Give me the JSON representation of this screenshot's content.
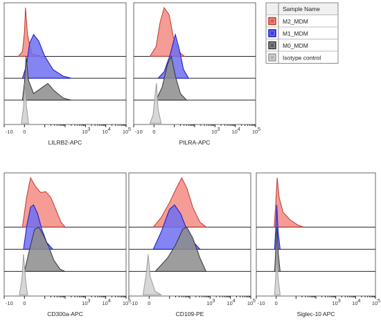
{
  "legend": {
    "title": "Sample Name",
    "entries": [
      {
        "label": "M2_MDM",
        "stroke": "#c0392b",
        "fill": "#f28b82",
        "key": "m2"
      },
      {
        "label": "M1_MDM",
        "stroke": "#1414c8",
        "fill": "#6f6ff0",
        "key": "m1"
      },
      {
        "label": "M0_MDM",
        "stroke": "#333333",
        "fill": "#8c8c8c",
        "key": "m0"
      },
      {
        "label": "Isotype control",
        "stroke": "#9a9a9a",
        "fill": "#d0d0d0",
        "key": "iso"
      }
    ]
  },
  "chart_data": [
    {
      "type": "histogram",
      "xlabel": "LILRB2-APC",
      "tick_labels": [
        "-10",
        "0",
        "10",
        "3",
        "10",
        "4",
        "10",
        "5"
      ],
      "series": {
        "m2": [
          [
            -0.3,
            0
          ],
          [
            -0.1,
            0.1
          ],
          [
            0,
            0.5
          ],
          [
            0.05,
            1.0
          ],
          [
            0.15,
            0.45
          ],
          [
            0.35,
            0.05
          ],
          [
            0.8,
            0
          ]
        ],
        "m1": [
          [
            -0.1,
            0
          ],
          [
            0.1,
            0.3
          ],
          [
            0.25,
            0.8
          ],
          [
            0.45,
            1.0
          ],
          [
            0.7,
            0.85
          ],
          [
            1.0,
            0.5
          ],
          [
            1.4,
            0.2
          ],
          [
            1.9,
            0.05
          ],
          [
            2.3,
            0
          ]
        ],
        "m0": [
          [
            -0.1,
            0
          ],
          [
            0,
            0.4
          ],
          [
            0.08,
            1.0
          ],
          [
            0.2,
            0.45
          ],
          [
            0.45,
            0.15
          ],
          [
            0.9,
            0.3
          ],
          [
            1.15,
            0.38
          ],
          [
            1.45,
            0.22
          ],
          [
            1.9,
            0.05
          ],
          [
            2.3,
            0
          ]
        ],
        "iso": [
          [
            -0.15,
            0
          ],
          [
            -0.05,
            0.4
          ],
          [
            0.02,
            1.0
          ],
          [
            0.1,
            0.4
          ],
          [
            0.2,
            0
          ]
        ]
      }
    },
    {
      "type": "histogram",
      "xlabel": "PILRA-APC",
      "tick_labels": [
        "-10",
        "0",
        "10",
        "3",
        "10",
        "4",
        "10",
        "5"
      ],
      "series": {
        "m2": [
          [
            -0.2,
            0
          ],
          [
            0.1,
            0.2
          ],
          [
            0.3,
            0.7
          ],
          [
            0.5,
            1.0
          ],
          [
            0.75,
            0.85
          ],
          [
            0.95,
            0.4
          ],
          [
            1.2,
            0.1
          ],
          [
            1.5,
            0
          ]
        ],
        "m1": [
          [
            0.2,
            0
          ],
          [
            0.5,
            0.15
          ],
          [
            0.8,
            0.55
          ],
          [
            1.05,
            1.0
          ],
          [
            1.25,
            0.65
          ],
          [
            1.45,
            0.2
          ],
          [
            1.7,
            0
          ]
        ],
        "m0": [
          [
            0.1,
            0
          ],
          [
            0.4,
            0.3
          ],
          [
            0.65,
            0.8
          ],
          [
            0.85,
            1.0
          ],
          [
            1.05,
            0.55
          ],
          [
            1.3,
            0.15
          ],
          [
            1.6,
            0
          ]
        ],
        "iso": [
          [
            -0.2,
            0
          ],
          [
            -0.05,
            0.2
          ],
          [
            0.05,
            0.7
          ],
          [
            0.12,
            1.0
          ],
          [
            0.2,
            0.35
          ],
          [
            0.35,
            0
          ]
        ]
      }
    },
    {
      "type": "histogram",
      "xlabel": "CD300a-APC",
      "tick_labels": [
        "-10",
        "0",
        "10",
        "3",
        "10",
        "4",
        "10",
        "5"
      ],
      "series": {
        "m2": [
          [
            -0.1,
            0
          ],
          [
            0.1,
            0.6
          ],
          [
            0.3,
            1.0
          ],
          [
            0.55,
            0.82
          ],
          [
            0.8,
            0.7
          ],
          [
            1.05,
            0.72
          ],
          [
            1.3,
            0.6
          ],
          [
            1.55,
            0.35
          ],
          [
            1.8,
            0.1
          ],
          [
            2.0,
            0
          ]
        ],
        "m1": [
          [
            -0.05,
            0
          ],
          [
            0.1,
            0.5
          ],
          [
            0.3,
            0.95
          ],
          [
            0.45,
            1.0
          ],
          [
            0.65,
            0.8
          ],
          [
            0.85,
            0.45
          ],
          [
            1.1,
            0.15
          ],
          [
            1.4,
            0
          ]
        ],
        "m0": [
          [
            0,
            0
          ],
          [
            0.25,
            0.5
          ],
          [
            0.5,
            0.95
          ],
          [
            0.7,
            1.0
          ],
          [
            0.95,
            0.8
          ],
          [
            1.2,
            0.55
          ],
          [
            1.45,
            0.25
          ],
          [
            1.75,
            0.05
          ],
          [
            2.0,
            0
          ]
        ],
        "iso": [
          [
            -0.25,
            0
          ],
          [
            -0.12,
            0.4
          ],
          [
            -0.05,
            1.0
          ],
          [
            0.05,
            0.4
          ],
          [
            0.15,
            0
          ]
        ]
      }
    },
    {
      "type": "histogram",
      "xlabel": "CD109-PE",
      "tick_labels": [
        "-10",
        "0",
        "10",
        "3",
        "10",
        "4",
        "10",
        "5"
      ],
      "series": {
        "m2": [
          [
            0.2,
            0
          ],
          [
            0.6,
            0.2
          ],
          [
            1.0,
            0.5
          ],
          [
            1.35,
            0.8
          ],
          [
            1.6,
            1.0
          ],
          [
            1.85,
            0.8
          ],
          [
            2.15,
            0.4
          ],
          [
            2.5,
            0.1
          ],
          [
            2.8,
            0
          ]
        ],
        "m1": [
          [
            0.2,
            0
          ],
          [
            0.6,
            0.4
          ],
          [
            1.0,
            0.9
          ],
          [
            1.25,
            1.0
          ],
          [
            1.55,
            0.8
          ],
          [
            1.85,
            0.45
          ],
          [
            2.2,
            0.15
          ],
          [
            2.5,
            0
          ]
        ],
        "m0": [
          [
            0.3,
            0
          ],
          [
            0.9,
            0.3
          ],
          [
            1.3,
            0.6
          ],
          [
            1.65,
            0.95
          ],
          [
            1.85,
            1.0
          ],
          [
            2.15,
            0.75
          ],
          [
            2.5,
            0.3
          ],
          [
            2.8,
            0
          ]
        ],
        "iso": [
          [
            -0.3,
            0
          ],
          [
            -0.15,
            0.5
          ],
          [
            -0.05,
            1.0
          ],
          [
            0.05,
            0.45
          ],
          [
            0.3,
            0.08
          ],
          [
            0.6,
            0
          ]
        ]
      }
    },
    {
      "type": "histogram",
      "xlabel": "Siglec-10 APC",
      "tick_labels": [
        "-10",
        "0",
        "10",
        "3",
        "10",
        "4",
        "10",
        "5"
      ],
      "series": {
        "m2": [
          [
            -0.1,
            0
          ],
          [
            -0.02,
            0.5
          ],
          [
            0.05,
            1.0
          ],
          [
            0.15,
            0.6
          ],
          [
            0.35,
            0.3
          ],
          [
            0.7,
            0.15
          ],
          [
            1.1,
            0.04
          ],
          [
            1.4,
            0
          ]
        ],
        "m1": [
          [
            -0.08,
            0
          ],
          [
            -0.02,
            0.5
          ],
          [
            0.03,
            1.0
          ],
          [
            0.1,
            0.4
          ],
          [
            0.2,
            0
          ]
        ],
        "m0": [
          [
            -0.08,
            0
          ],
          [
            -0.02,
            0.5
          ],
          [
            0.04,
            1.0
          ],
          [
            0.11,
            0.4
          ],
          [
            0.2,
            0
          ]
        ],
        "iso": [
          [
            -0.08,
            0
          ],
          [
            -0.02,
            0.5
          ],
          [
            0.03,
            1.0
          ],
          [
            0.1,
            0.4
          ],
          [
            0.2,
            0
          ]
        ]
      }
    }
  ]
}
